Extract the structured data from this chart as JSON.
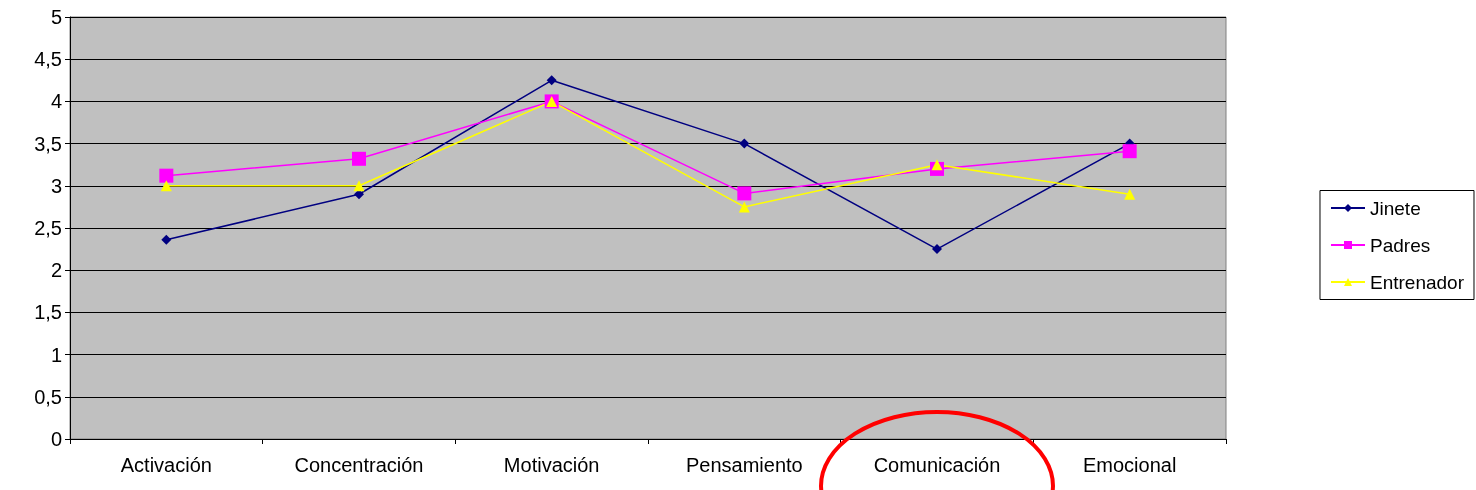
{
  "chart_data": {
    "type": "line",
    "categories": [
      "Activación",
      "Concentración",
      "Motivación",
      "Pensamiento",
      "Comunicación",
      "Emocional"
    ],
    "series": [
      {
        "name": "Jinete",
        "color": "#000080",
        "marker": "diamond",
        "values": [
          2.36,
          2.9,
          4.25,
          3.5,
          2.25,
          3.5
        ]
      },
      {
        "name": "Padres",
        "color": "#ff00ff",
        "marker": "square",
        "values": [
          3.12,
          3.32,
          4.0,
          2.91,
          3.2,
          3.41
        ]
      },
      {
        "name": "Entrenador",
        "color": "#ffff00",
        "marker": "triangle",
        "values": [
          3.0,
          3.0,
          4.0,
          2.75,
          3.25,
          2.9
        ]
      }
    ],
    "ylim": [
      0,
      5
    ],
    "yticks": [
      0,
      {
        "value": 0.5,
        "label": "0,5"
      },
      1,
      {
        "value": 1.5,
        "label": "1,5"
      },
      2,
      {
        "value": 2.5,
        "label": "2,5"
      },
      3,
      {
        "value": 3.5,
        "label": "3,5"
      },
      4,
      {
        "value": 4.5,
        "label": "4,5"
      },
      5
    ],
    "grid": "y",
    "legend": "right",
    "line_style": "solid"
  }
}
